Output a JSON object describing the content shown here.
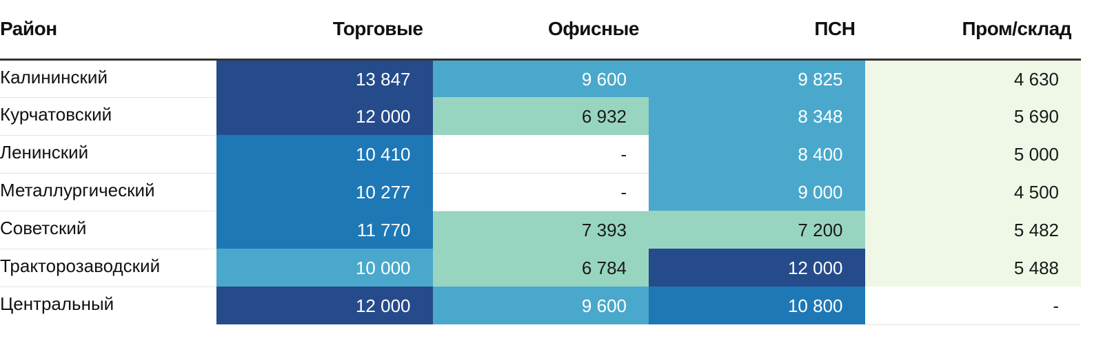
{
  "chart_data": {
    "type": "table",
    "columns": [
      "Район",
      "Торговые",
      "Офисные",
      "ПСН",
      "Пром/склад"
    ],
    "rows": [
      {
        "name": "Калининский",
        "values": [
          "13 847",
          "9 600",
          "9 825",
          "4 630"
        ],
        "tiers": [
          4,
          2,
          2,
          0
        ]
      },
      {
        "name": "Курчатовский",
        "values": [
          "12 000",
          "6 932",
          "8 348",
          "5 690"
        ],
        "tiers": [
          4,
          1,
          2,
          0
        ]
      },
      {
        "name": "Ленинский",
        "values": [
          "10 410",
          "-",
          "8 400",
          "5 000"
        ],
        "tiers": [
          3,
          -1,
          2,
          0
        ]
      },
      {
        "name": "Металлургический",
        "values": [
          "10 277",
          "-",
          "9 000",
          "4 500"
        ],
        "tiers": [
          3,
          -1,
          2,
          0
        ]
      },
      {
        "name": "Советский",
        "values": [
          "11 770",
          "7 393",
          "7 200",
          "5 482"
        ],
        "tiers": [
          3,
          1,
          1,
          0
        ]
      },
      {
        "name": "Тракторозаводский",
        "values": [
          "10 000",
          "6 784",
          "12 000",
          "5 488"
        ],
        "tiers": [
          2,
          1,
          4,
          0
        ]
      },
      {
        "name": "Центральный",
        "values": [
          "12 000",
          "9 600",
          "10 800",
          "-"
        ],
        "tiers": [
          4,
          2,
          3,
          -1
        ]
      }
    ],
    "color_scale": {
      "-1": {
        "bg": "#ffffff",
        "fg": "#222222"
      },
      "0": {
        "bg": "#eff8e6",
        "fg": "#1a1a1a"
      },
      "1": {
        "bg": "#98d5c0",
        "fg": "#1a1a1a"
      },
      "2": {
        "bg": "#4aa8cc",
        "fg": "#ffffff"
      },
      "3": {
        "bg": "#1e78b6",
        "fg": "#ffffff"
      },
      "4": {
        "bg": "#254b8b",
        "fg": "#ffffff"
      }
    }
  }
}
